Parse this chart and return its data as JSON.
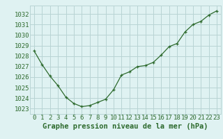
{
  "x": [
    0,
    1,
    2,
    3,
    4,
    5,
    6,
    7,
    8,
    9,
    10,
    11,
    12,
    13,
    14,
    15,
    16,
    17,
    18,
    19,
    20,
    21,
    22,
    23
  ],
  "y": [
    1028.5,
    1027.2,
    1026.1,
    1025.2,
    1024.1,
    1023.5,
    1023.2,
    1023.3,
    1023.6,
    1023.9,
    1024.8,
    1026.2,
    1026.5,
    1027.0,
    1027.1,
    1027.4,
    1028.1,
    1028.9,
    1029.2,
    1030.3,
    1031.0,
    1031.3,
    1031.9,
    1032.3
  ],
  "line_color": "#2d6a2d",
  "marker": "+",
  "bg_color": "#dff2f2",
  "grid_color": "#b8d4d4",
  "xlabel": "Graphe pression niveau de la mer (hPa)",
  "xlabel_color": "#2d6a2d",
  "ylabel_ticks": [
    1023,
    1024,
    1025,
    1026,
    1027,
    1028,
    1029,
    1030,
    1031,
    1032
  ],
  "xlim": [
    -0.5,
    23.5
  ],
  "ylim": [
    1022.5,
    1032.8
  ],
  "xtick_labels": [
    "0",
    "1",
    "2",
    "3",
    "4",
    "5",
    "6",
    "7",
    "8",
    "9",
    "10",
    "11",
    "12",
    "13",
    "14",
    "15",
    "16",
    "17",
    "18",
    "19",
    "20",
    "21",
    "22",
    "23"
  ],
  "tick_color": "#2d6a2d",
  "font_size_xlabel": 7.5,
  "font_size_tick": 6.5
}
